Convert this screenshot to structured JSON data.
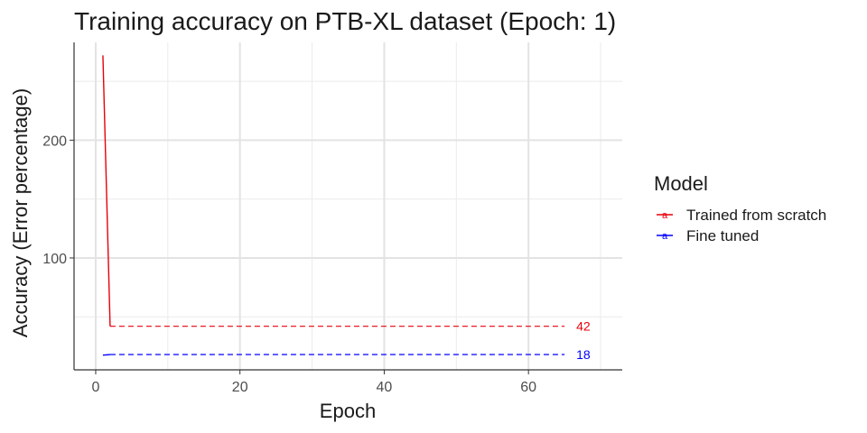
{
  "chart_data": {
    "type": "line",
    "title": "Training accuracy on PTB-XL dataset (Epoch: 1)",
    "xlabel": "Epoch",
    "ylabel": "Accuracy (Error percentage)",
    "xlim": [
      -3,
      73
    ],
    "ylim": [
      5,
      283
    ],
    "x_ticks": [
      0,
      20,
      40,
      60
    ],
    "y_ticks": [
      100,
      200
    ],
    "grid": true,
    "legend": {
      "title": "Model",
      "position": "right",
      "key_glyph": "a"
    },
    "series": [
      {
        "name": "Trained from scratch",
        "color": "#e8000b",
        "solid": [
          [
            1,
            272
          ],
          [
            2,
            42
          ]
        ],
        "dashed": [
          [
            2,
            42
          ],
          [
            65,
            42
          ]
        ],
        "end_label": "42"
      },
      {
        "name": "Fine tuned",
        "color": "#0000ff",
        "solid": [
          [
            1,
            17.5
          ],
          [
            2,
            18
          ]
        ],
        "dashed": [
          [
            2,
            18
          ],
          [
            65,
            18
          ]
        ],
        "end_label": "18"
      }
    ]
  }
}
